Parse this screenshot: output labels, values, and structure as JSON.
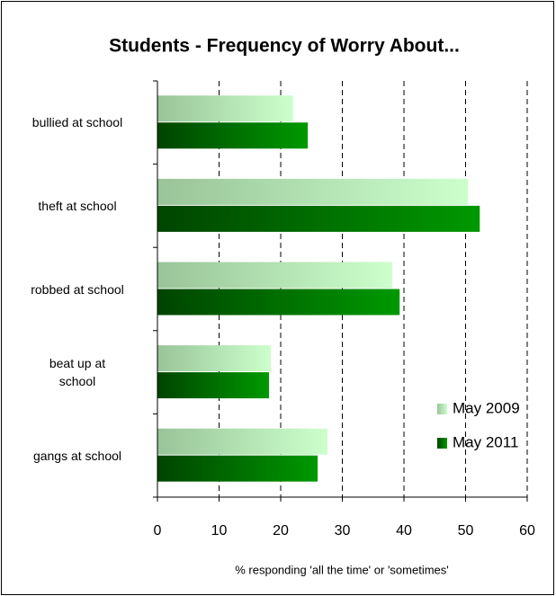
{
  "chart_data": {
    "type": "bar",
    "orientation": "horizontal",
    "title": "Students - Frequency of Worry About...",
    "x_label": "% responding 'all the time' or 'sometimes'",
    "categories": [
      "bullied at school",
      "theft at school",
      "robbed at school",
      "beat up at\nschool",
      "gangs at school"
    ],
    "series": [
      {
        "name": "May 2009",
        "color": "#ccffcc",
        "values": [
          22.0,
          50.4,
          38.1,
          18.4,
          27.6
        ]
      },
      {
        "name": "May 2011",
        "color": "#009900",
        "values": [
          24.4,
          52.3,
          39.3,
          18.1,
          26.0
        ]
      }
    ],
    "xlim": [
      0,
      60
    ],
    "xticks": [
      0,
      10,
      20,
      30,
      40,
      50,
      60
    ],
    "grid": true,
    "legend": "lower right"
  }
}
